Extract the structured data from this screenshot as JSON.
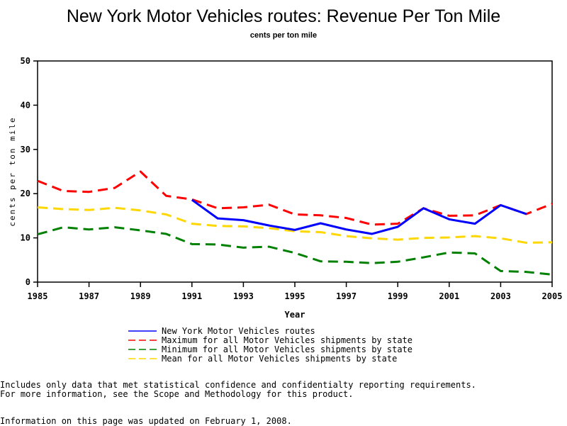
{
  "chart_data": {
    "type": "line",
    "title": "New York Motor Vehicles routes: Revenue Per Ton Mile",
    "subtitle": "cents per ton mile",
    "xlabel": "Year",
    "ylabel": "cents per ton mile",
    "xlim": [
      1985,
      2005
    ],
    "ylim": [
      0,
      50
    ],
    "x_ticks": [
      "1985",
      "1987",
      "1989",
      "1991",
      "1993",
      "1995",
      "1997",
      "1999",
      "2001",
      "2003",
      "2005"
    ],
    "y_ticks": [
      "0",
      "10",
      "20",
      "30",
      "40",
      "50"
    ],
    "grid": false,
    "legend_position": "bottom",
    "x": [
      1985,
      1986,
      1987,
      1988,
      1989,
      1990,
      1991,
      1992,
      1993,
      1994,
      1995,
      1996,
      1997,
      1998,
      1999,
      2000,
      2001,
      2002,
      2003,
      2004,
      2005
    ],
    "series": [
      {
        "name": "New York Motor Vehicles routes",
        "color": "#0000ff",
        "style": "solid",
        "values": [
          null,
          null,
          null,
          null,
          null,
          null,
          18.6,
          14.4,
          14.0,
          12.8,
          11.8,
          13.3,
          11.9,
          10.9,
          12.5,
          16.7,
          14.2,
          13.2,
          17.4,
          15.4,
          null
        ]
      },
      {
        "name": "Maximum for all Motor Vehicles shipments by state",
        "color": "#ff0000",
        "style": "dashed",
        "values": [
          22.9,
          20.6,
          20.4,
          21.3,
          25.0,
          19.5,
          18.7,
          16.7,
          16.9,
          17.5,
          15.3,
          15.1,
          14.5,
          13.0,
          13.2,
          16.7,
          15.0,
          15.1,
          17.4,
          15.4,
          17.7
        ]
      },
      {
        "name": "Minimum for all Motor Vehicles shipments by state",
        "color": "#008000",
        "style": "dashed",
        "values": [
          10.8,
          12.4,
          11.9,
          12.4,
          11.7,
          10.9,
          8.6,
          8.5,
          7.8,
          8.0,
          6.6,
          4.7,
          4.6,
          4.3,
          4.6,
          5.6,
          6.7,
          6.5,
          2.5,
          2.3,
          1.7
        ]
      },
      {
        "name": "Mean for all Motor Vehicles shipments by state",
        "color": "#ffd700",
        "style": "dashed",
        "values": [
          16.9,
          16.5,
          16.3,
          16.8,
          16.2,
          15.3,
          13.2,
          12.7,
          12.6,
          12.2,
          11.5,
          11.3,
          10.4,
          9.9,
          9.6,
          10.0,
          10.1,
          10.4,
          9.9,
          8.9,
          9.0
        ]
      }
    ]
  },
  "footnotes": {
    "line1": "Includes only data that met statistical confidence and confidentialty reporting requirements.",
    "line2": "For more information, see the Scope and Methodology for this product.",
    "updated": "Information on this page was updated on February 1, 2008."
  }
}
